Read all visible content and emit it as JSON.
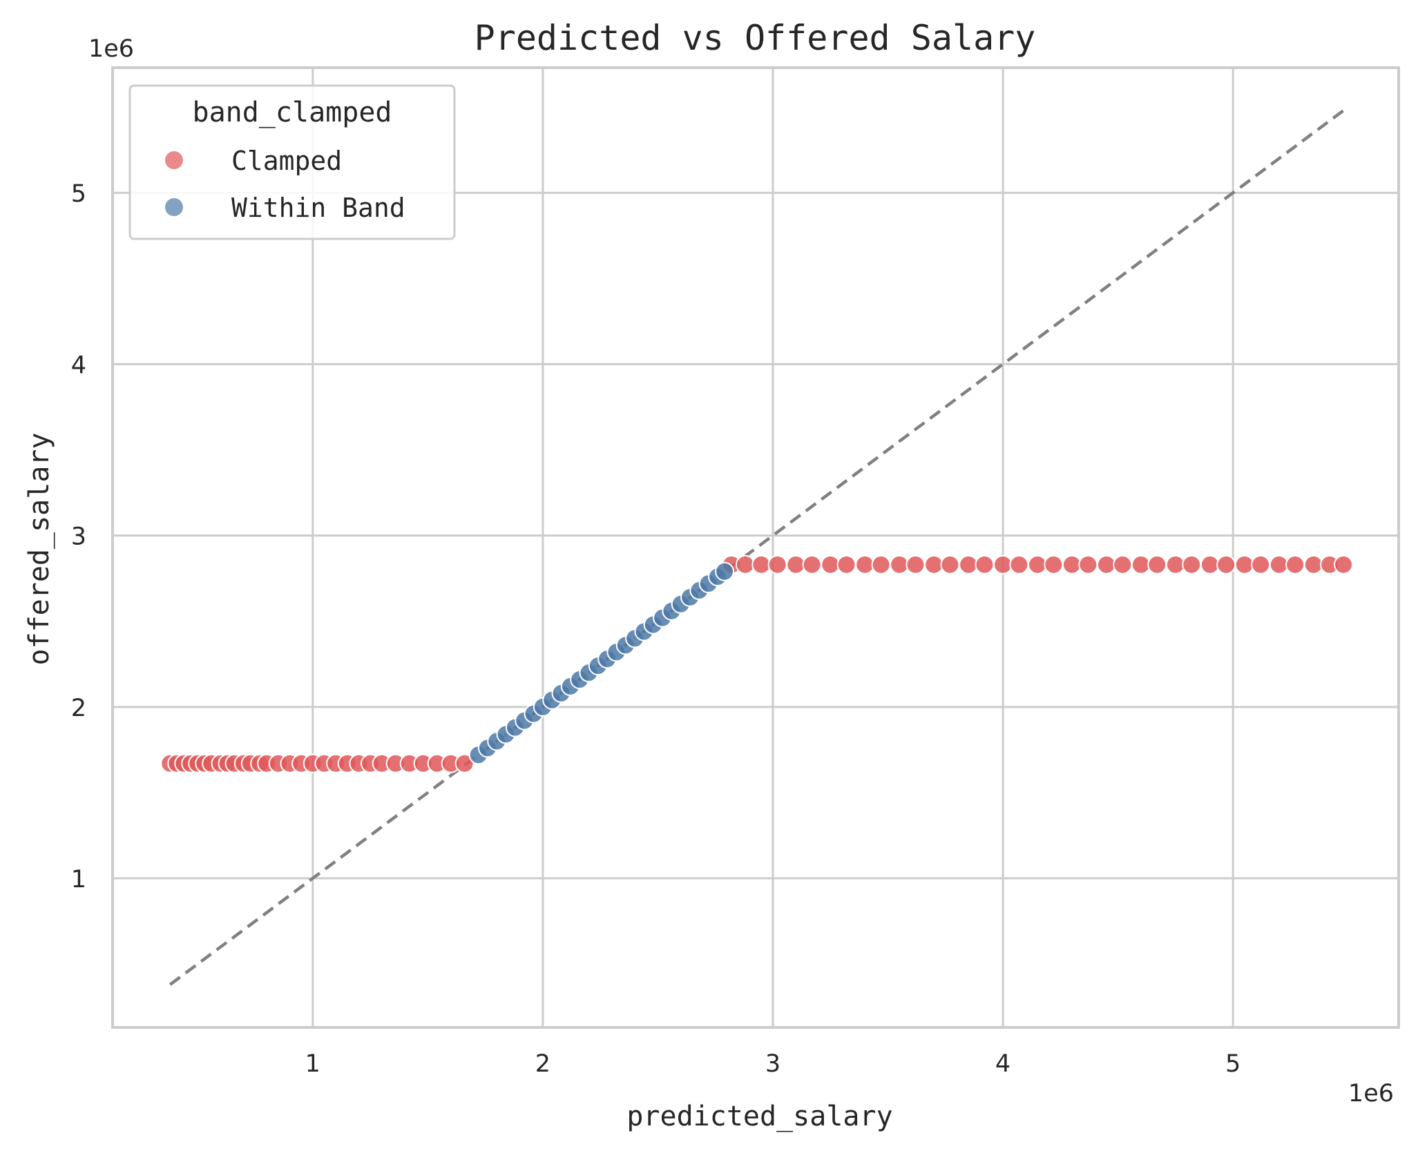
{
  "chart_data": {
    "type": "scatter",
    "title": "Predicted vs Offered Salary",
    "xlabel": "predicted_salary",
    "ylabel": "offered_salary",
    "x_offset_text": "1e6",
    "y_offset_text": "1e6",
    "xlim": [
      0.13,
      5.72
    ],
    "ylim": [
      0.13,
      5.73
    ],
    "x_ticks": [
      1,
      2,
      3,
      4,
      5
    ],
    "x_tick_labels": [
      "1",
      "2",
      "3",
      "4",
      "5"
    ],
    "y_ticks": [
      1,
      2,
      3,
      4,
      5
    ],
    "y_tick_labels": [
      "1",
      "2",
      "3",
      "4",
      "5"
    ],
    "grid": true,
    "legend": {
      "title": "band_clamped",
      "position": "top-left",
      "entries": [
        "Clamped",
        "Within Band"
      ]
    },
    "reference_line": {
      "style": "dashed",
      "color": "#808080",
      "x": [
        0.38,
        5.48
      ],
      "y": [
        0.38,
        5.48
      ]
    },
    "series": [
      {
        "name": "Clamped",
        "color": "#e15759",
        "segments": [
          {
            "y": 1.67,
            "x": [
              0.38,
              0.41,
              0.44,
              0.47,
              0.5,
              0.53,
              0.56,
              0.6,
              0.63,
              0.66,
              0.7,
              0.73,
              0.77,
              0.8,
              0.85,
              0.9,
              0.95,
              1.0,
              1.05,
              1.1,
              1.15,
              1.2,
              1.25,
              1.3,
              1.36,
              1.42,
              1.48,
              1.54,
              1.6,
              1.66
            ]
          },
          {
            "y": 2.83,
            "x": [
              2.82,
              2.88,
              2.95,
              3.02,
              3.1,
              3.17,
              3.25,
              3.32,
              3.4,
              3.47,
              3.55,
              3.62,
              3.7,
              3.77,
              3.85,
              3.92,
              4.0,
              4.07,
              4.15,
              4.22,
              4.3,
              4.37,
              4.45,
              4.52,
              4.6,
              4.67,
              4.75,
              4.82,
              4.9,
              4.97,
              5.05,
              5.12,
              5.2,
              5.27,
              5.35,
              5.42,
              5.48
            ]
          }
        ]
      },
      {
        "name": "Within Band",
        "color": "#4e79a7",
        "points": [
          [
            1.72,
            1.72
          ],
          [
            1.76,
            1.76
          ],
          [
            1.8,
            1.8
          ],
          [
            1.84,
            1.84
          ],
          [
            1.88,
            1.88
          ],
          [
            1.92,
            1.92
          ],
          [
            1.96,
            1.96
          ],
          [
            2.0,
            2.0
          ],
          [
            2.04,
            2.04
          ],
          [
            2.08,
            2.08
          ],
          [
            2.12,
            2.12
          ],
          [
            2.16,
            2.16
          ],
          [
            2.2,
            2.2
          ],
          [
            2.24,
            2.24
          ],
          [
            2.28,
            2.28
          ],
          [
            2.32,
            2.32
          ],
          [
            2.36,
            2.36
          ],
          [
            2.4,
            2.4
          ],
          [
            2.44,
            2.44
          ],
          [
            2.48,
            2.48
          ],
          [
            2.52,
            2.52
          ],
          [
            2.56,
            2.56
          ],
          [
            2.6,
            2.6
          ],
          [
            2.64,
            2.64
          ],
          [
            2.68,
            2.68
          ],
          [
            2.72,
            2.72
          ],
          [
            2.76,
            2.76
          ],
          [
            2.79,
            2.79
          ]
        ]
      }
    ]
  }
}
